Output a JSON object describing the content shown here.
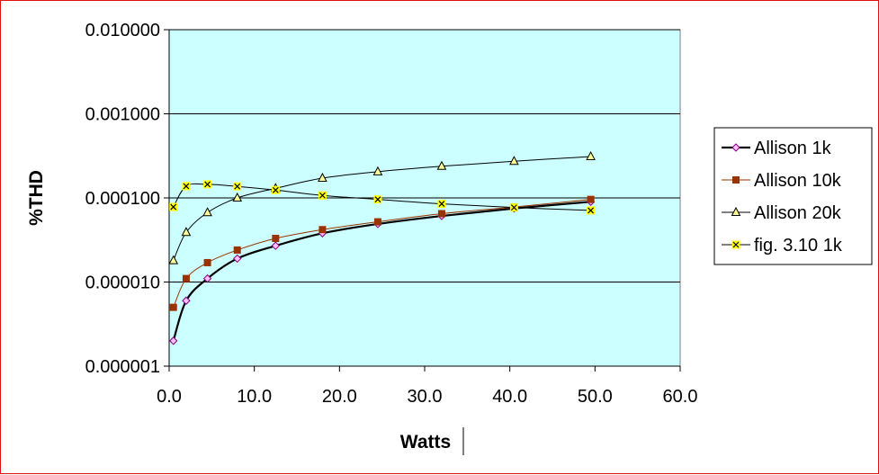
{
  "chart_data": {
    "type": "line",
    "title": "",
    "xlabel": "Watts",
    "ylabel": "%THD",
    "xlim": [
      0,
      60
    ],
    "ylim": [
      1e-06,
      0.01
    ],
    "y_scale": "log",
    "x_ticks": [
      "0.0",
      "10.0",
      "20.0",
      "30.0",
      "40.0",
      "50.0",
      "60.0"
    ],
    "y_ticks": [
      "0.000001",
      "0.000010",
      "0.000100",
      "0.001000",
      "0.010000"
    ],
    "grid": "horizontal major",
    "plot_background": "#ccffff",
    "legend_position": "right",
    "series": [
      {
        "name": "Allison 1k",
        "color": "#000000",
        "marker": "diamond",
        "marker_fill": "#ffc0ff",
        "marker_stroke": "#800080",
        "x": [
          0.5,
          2.0,
          4.5,
          8.0,
          12.5,
          18.0,
          24.5,
          32.0,
          40.5,
          49.5
        ],
        "y": [
          2e-06,
          6e-06,
          1.1e-05,
          1.9e-05,
          2.7e-05,
          3.8e-05,
          4.9e-05,
          6.1e-05,
          7.5e-05,
          9e-05
        ]
      },
      {
        "name": "Allison 10k",
        "color": "#993300",
        "marker": "square",
        "marker_fill": "#993300",
        "marker_stroke": "#993300",
        "x": [
          0.5,
          2.0,
          4.5,
          8.0,
          12.5,
          18.0,
          24.5,
          32.0,
          40.5,
          49.5
        ],
        "y": [
          5e-06,
          1.1e-05,
          1.7e-05,
          2.4e-05,
          3.3e-05,
          4.2e-05,
          5.2e-05,
          6.5e-05,
          7.8e-05,
          9.6e-05
        ]
      },
      {
        "name": "Allison 20k",
        "color": "#000000",
        "marker": "triangle",
        "marker_fill": "#ffff99",
        "marker_stroke": "#000000",
        "x": [
          0.5,
          2.0,
          4.5,
          8.0,
          12.5,
          18.0,
          24.5,
          32.0,
          40.5,
          49.5
        ],
        "y": [
          1.8e-05,
          3.9e-05,
          6.7e-05,
          0.0001,
          0.00013,
          0.000172,
          0.000205,
          0.000238,
          0.000273,
          0.00031
        ]
      },
      {
        "name": "fig. 3.10 1k",
        "color": "#000000",
        "marker": "x-square",
        "marker_fill": "#ffff00",
        "marker_stroke": "#000000",
        "x": [
          0.5,
          2.0,
          4.5,
          8.0,
          12.5,
          18.0,
          24.5,
          32.0,
          40.5,
          49.5
        ],
        "y": [
          7.8e-05,
          0.000138,
          0.000145,
          0.000137,
          0.000124,
          0.000107,
          9.6e-05,
          8.5e-05,
          7.7e-05,
          7.1e-05
        ]
      }
    ]
  }
}
